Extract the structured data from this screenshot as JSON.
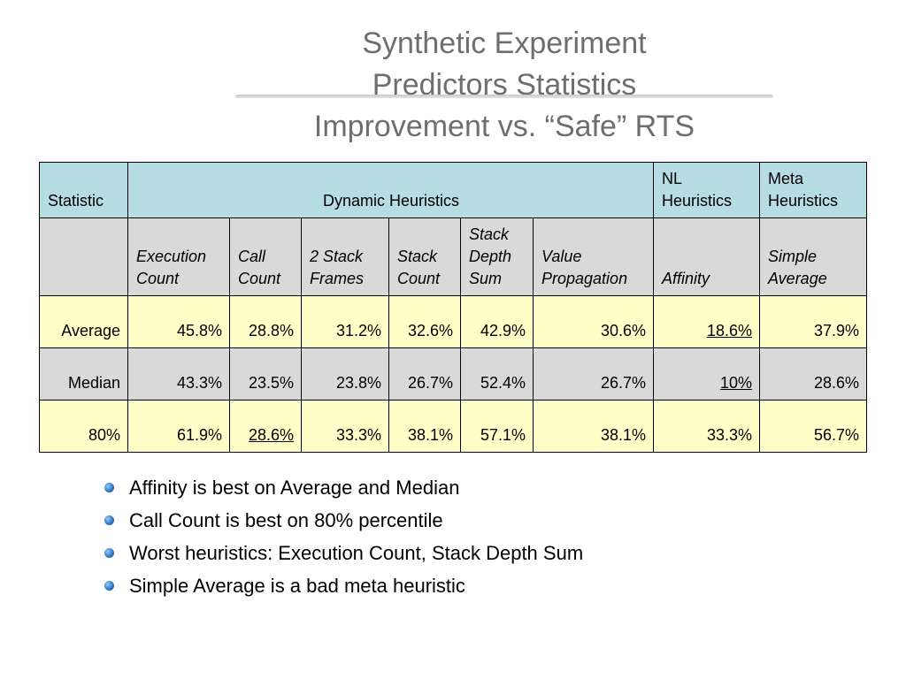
{
  "title": {
    "line1": "Synthetic Experiment",
    "line2": "Predictors Statistics",
    "line3": "Improvement vs. “Safe” RTS"
  },
  "table": {
    "header": {
      "statistic": "Statistic",
      "dynamic": "Dynamic Heuristics",
      "nl": "NL Heuristics",
      "meta": "Meta Heuristics"
    },
    "subheader": [
      "",
      "Execution Count",
      "Call Count",
      "2 Stack Frames",
      "Stack Count",
      "Stack Depth Sum",
      "Value Propagation",
      "Affinity",
      "Simple Average"
    ],
    "rows": [
      {
        "label": "Average",
        "values": [
          "45.8%",
          "28.8%",
          "31.2%",
          "32.6%",
          "42.9%",
          "30.6%",
          "18.6%",
          "37.9%"
        ]
      },
      {
        "label": "Median",
        "values": [
          "43.3%",
          "23.5%",
          "23.8%",
          "26.7%",
          "52.4%",
          "26.7%",
          "10%",
          "28.6%"
        ]
      },
      {
        "label": "80%",
        "values": [
          "61.9%",
          "28.6%",
          "33.3%",
          "38.1%",
          "57.1%",
          "38.1%",
          "33.3%",
          "56.7%"
        ]
      }
    ]
  },
  "bullets": [
    "Affinity is best on Average and Median",
    "Call Count is best on 80% percentile",
    "Worst heuristics: Execution Count, Stack Depth Sum",
    "Simple Average is a bad meta heuristic"
  ],
  "colors": {
    "header_bg": "#b7dde4",
    "subheader_bg": "#d9d9d9",
    "highlight_row_bg": "#ffffc8",
    "title_text": "#6e6e6e",
    "bullet": "#2f79c9"
  }
}
